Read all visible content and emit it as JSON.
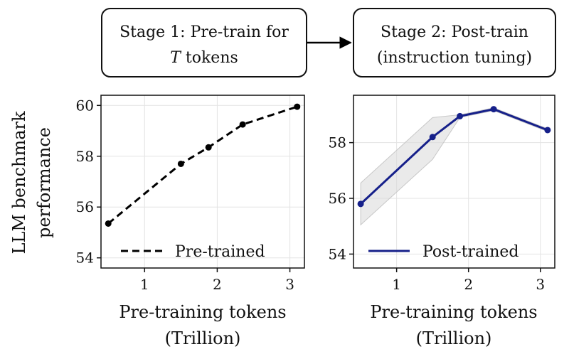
{
  "stages": {
    "stage1_line1": "Stage 1: Pre-train for",
    "stage1_italic": "T",
    "stage1_rest": " tokens",
    "stage2_line1": "Stage 2: Post-train",
    "stage2_line2": "(instruction tuning)"
  },
  "chart_data": [
    {
      "type": "line",
      "title": "",
      "xlabel_line1": "Pre-training tokens",
      "xlabel_line2": "(Trillion)",
      "ylabel_line1": "LLM benchmark",
      "ylabel_line2": "performance",
      "xlim": [
        0.4,
        3.2
      ],
      "ylim": [
        53.6,
        60.4
      ],
      "xticks": [
        1,
        2,
        3
      ],
      "yticks": [
        54,
        56,
        58,
        60
      ],
      "grid": true,
      "legend_position": "bottom-right",
      "series": [
        {
          "name": "Pre-trained",
          "color": "#000000",
          "style": "dashed",
          "x": [
            0.5,
            1.5,
            1.88,
            2.35,
            3.1
          ],
          "y": [
            55.35,
            57.7,
            58.35,
            59.25,
            59.95
          ]
        }
      ]
    },
    {
      "type": "line",
      "title": "",
      "xlabel_line1": "Pre-training tokens",
      "xlabel_line2": "(Trillion)",
      "xlim": [
        0.4,
        3.2
      ],
      "ylim": [
        53.5,
        59.7
      ],
      "xticks": [
        1,
        2,
        3
      ],
      "yticks": [
        54,
        56,
        58
      ],
      "grid": true,
      "legend_position": "bottom-right",
      "series": [
        {
          "name": "Post-trained",
          "color": "#16208a",
          "style": "solid",
          "x": [
            0.5,
            1.5,
            1.88,
            2.35,
            3.1
          ],
          "y": [
            55.8,
            58.2,
            58.95,
            59.2,
            58.45
          ],
          "band_lower": [
            55.05,
            57.4,
            58.9,
            59.15,
            58.4
          ],
          "band_upper": [
            56.55,
            58.9,
            59.0,
            59.25,
            58.5
          ]
        }
      ]
    }
  ]
}
